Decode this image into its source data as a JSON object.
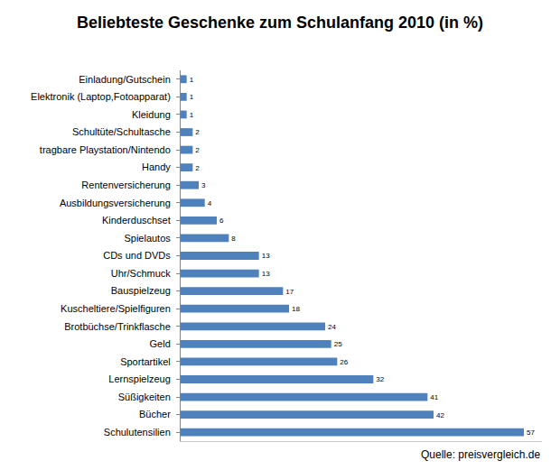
{
  "chart_data": {
    "type": "bar",
    "orientation": "horizontal",
    "title": "Beliebteste Geschenke zum Schulanfang 2010 (in %)",
    "categories": [
      "Einladung/Gutschein",
      "Elektronik (Laptop,Fotoapparat)",
      "Kleidung",
      "Schultüte/Schultasche",
      "tragbare Playstation/Nintendo",
      "Handy",
      "Rentenversicherung",
      "Ausbildungsversicherung",
      "Kinderduschset",
      "Spielautos",
      "CDs und DVDs",
      "Uhr/Schmuck",
      "Bauspielzeug",
      "Kuscheltiere/Spielfiguren",
      "Brotbüchse/Trinkflasche",
      "Geld",
      "Sportartikel",
      "Lernspielzeug",
      "Süßigkeiten",
      "Bücher",
      "Schulutensilien"
    ],
    "values": [
      1,
      1,
      1,
      2,
      2,
      2,
      3,
      4,
      6,
      8,
      13,
      13,
      17,
      18,
      24,
      25,
      26,
      32,
      41,
      42,
      57
    ],
    "color": "#4f81bd",
    "xlim": [
      0,
      60
    ],
    "grid": false,
    "data_labels": true,
    "tick_labels": "y",
    "annotations": [
      "Quelle: preisvergleich.de"
    ]
  }
}
